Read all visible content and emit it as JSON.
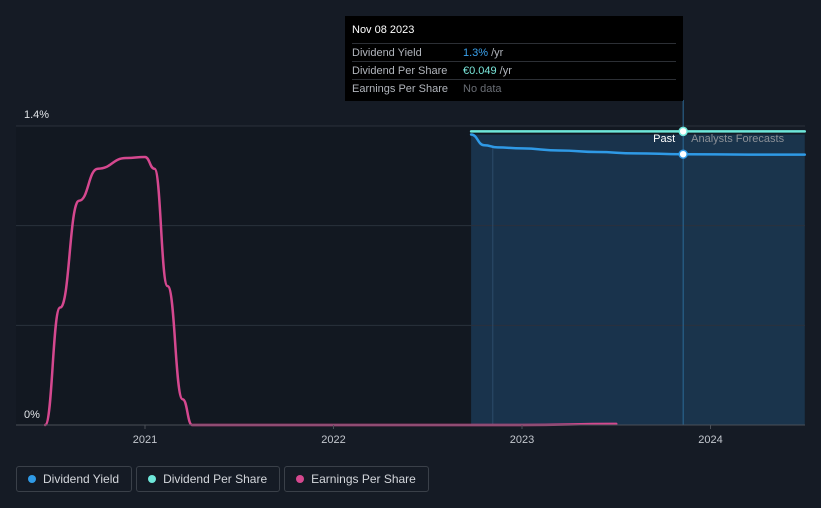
{
  "chart_data": {
    "type": "line",
    "title": "",
    "x_ticks": [
      "2021",
      "2022",
      "2023",
      "2024"
    ],
    "y_ticks": [
      "1.4%",
      "0%"
    ],
    "ylim": [
      0,
      1.4
    ],
    "past_label": "Past",
    "forecast_label": "Analysts Forecasts",
    "past_forecast_divider_date": 2023.855,
    "shaded_range": [
      2022.73,
      2024.5
    ],
    "series": [
      {
        "name": "Dividend Yield",
        "color": "#2f9ae6",
        "unit": "%",
        "x": [
          2022.73,
          2022.8,
          2022.87,
          2023.0,
          2023.2,
          2023.4,
          2023.6,
          2023.855,
          2024.2,
          2024.5
        ],
        "y": [
          1.36,
          1.31,
          1.3,
          1.295,
          1.285,
          1.278,
          1.272,
          1.268,
          1.266,
          1.266
        ]
      },
      {
        "name": "Dividend Per Share",
        "color": "#6ee7da",
        "unit": "relative",
        "x": [
          2022.73,
          2023.855,
          2024.5
        ],
        "y": [
          1.375,
          1.375,
          1.375
        ]
      },
      {
        "name": "Earnings Per Share",
        "color": "#d5488f",
        "unit": "relative",
        "x": [
          2020.47,
          2020.55,
          2020.65,
          2020.75,
          2020.9,
          2021.0,
          2021.05,
          2021.12,
          2021.2,
          2021.25,
          2021.5,
          2022.0,
          2022.5,
          2023.0,
          2023.5
        ],
        "y": [
          0.0,
          0.55,
          1.05,
          1.2,
          1.25,
          1.255,
          1.2,
          0.65,
          0.12,
          0.0,
          0.0,
          0.0,
          0.0,
          0.0,
          0.005
        ]
      }
    ]
  },
  "tooltip": {
    "date": "Nov 08 2023",
    "rows": [
      {
        "name": "Dividend Yield",
        "value": "1.3%",
        "unit": "/yr"
      },
      {
        "name": "Dividend Per Share",
        "value": "€0.049",
        "unit": "/yr"
      },
      {
        "name": "Earnings Per Share",
        "value": "No data",
        "unit": ""
      }
    ]
  },
  "legend": [
    {
      "label": "Dividend Yield",
      "color": "#2f9ae6"
    },
    {
      "label": "Dividend Per Share",
      "color": "#6ee7da"
    },
    {
      "label": "Earnings Per Share",
      "color": "#d5488f"
    }
  ]
}
